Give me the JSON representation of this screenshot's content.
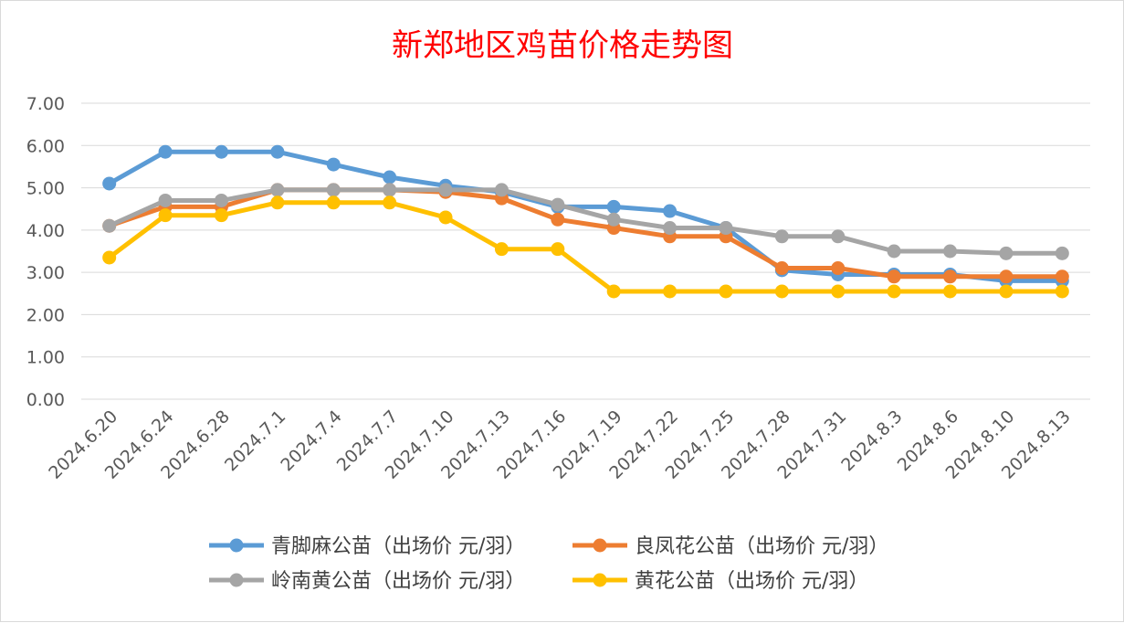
{
  "chart_data": {
    "type": "line",
    "title": "新郑地区鸡苗价格走势图",
    "xlabel": "",
    "ylabel": "",
    "ylim": [
      0,
      7
    ],
    "yticks": [
      "0.00",
      "1.00",
      "2.00",
      "3.00",
      "4.00",
      "5.00",
      "6.00",
      "7.00"
    ],
    "grid": true,
    "legend_position": "bottom",
    "categories": [
      "2024.6.20",
      "2024.6.24",
      "2024.6.28",
      "2024.7.1",
      "2024.7.4",
      "2024.7.7",
      "2024.7.10",
      "2024.7.13",
      "2024.7.16",
      "2024.7.19",
      "2024.7.22",
      "2024.7.25",
      "2024.7.28",
      "2024.7.31",
      "2024.8.3",
      "2024.8.6",
      "2024.8.10",
      "2024.8.13"
    ],
    "series": [
      {
        "name": "青脚麻公苗（出场价 元/羽）",
        "color": "#5b9bd5",
        "values": [
          5.1,
          5.85,
          5.85,
          5.85,
          5.55,
          5.25,
          5.05,
          4.9,
          4.55,
          4.55,
          4.45,
          4.05,
          3.05,
          2.95,
          2.95,
          2.95,
          2.8,
          2.8
        ]
      },
      {
        "name": "良凤花公苗（出场价 元/羽）",
        "color": "#ed7d31",
        "values": [
          4.1,
          4.55,
          4.55,
          4.95,
          4.95,
          4.95,
          4.9,
          4.75,
          4.25,
          4.05,
          3.85,
          3.85,
          3.1,
          3.1,
          2.9,
          2.9,
          2.9,
          2.9
        ]
      },
      {
        "name": "岭南黄公苗（出场价 元/羽）",
        "color": "#a5a5a5",
        "values": [
          4.1,
          4.7,
          4.7,
          4.95,
          4.95,
          4.95,
          4.95,
          4.95,
          4.6,
          4.25,
          4.05,
          4.05,
          3.85,
          3.85,
          3.5,
          3.5,
          3.45,
          3.45
        ]
      },
      {
        "name": "黄花公苗（出场价 元/羽）",
        "color": "#ffc000",
        "values": [
          3.35,
          4.35,
          4.35,
          4.65,
          4.65,
          4.65,
          4.3,
          3.55,
          3.55,
          2.55,
          2.55,
          2.55,
          2.55,
          2.55,
          2.55,
          2.55,
          2.55,
          2.55
        ]
      }
    ]
  }
}
